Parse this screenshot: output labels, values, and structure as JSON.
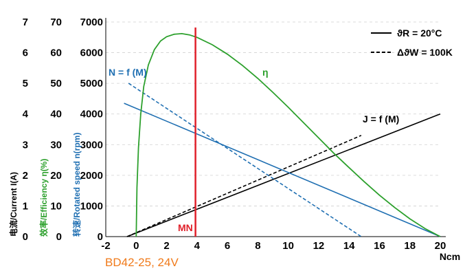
{
  "model_label": "BD42-25, 24V",
  "colors": {
    "current": "#000000",
    "efficiency": "#2ca02c",
    "speed": "#1f6fb2",
    "rated_marker": "#e0202a",
    "model_label": "#f07a1a"
  },
  "chart_data": {
    "type": "line",
    "xlabel": "Ncm",
    "xlim": [
      -2,
      20
    ],
    "x_ticks": [
      "-2",
      "0",
      "2",
      "4",
      "6",
      "8",
      "10",
      "12",
      "14",
      "16",
      "18",
      "20"
    ],
    "x_tick_values": [
      -2,
      0,
      2,
      4,
      6,
      8,
      10,
      12,
      14,
      16,
      18,
      20
    ],
    "axes": {
      "current": {
        "label": "电流/Current I(A)",
        "lim": [
          0,
          7
        ],
        "ticks": [
          "0",
          "1",
          "2",
          "3",
          "4",
          "5",
          "6",
          "7"
        ],
        "tick_values": [
          0,
          1,
          2,
          3,
          4,
          5,
          6,
          7
        ]
      },
      "efficiency": {
        "label": "效率/Efficiency η(%)",
        "lim": [
          0,
          70
        ],
        "ticks": [
          "0",
          "10",
          "20",
          "30",
          "40",
          "50",
          "60",
          "70"
        ],
        "tick_values": [
          0,
          10,
          20,
          30,
          40,
          50,
          60,
          70
        ]
      },
      "speed": {
        "label": "转速/Rotated speed n(rpm)",
        "lim": [
          0,
          7000
        ],
        "ticks": [
          "0",
          "1000",
          "2000",
          "3000",
          "4000",
          "5000",
          "6000",
          "7000"
        ],
        "tick_values": [
          0,
          1000,
          2000,
          3000,
          4000,
          5000,
          6000,
          7000
        ]
      }
    },
    "legend": {
      "placement": "top-right",
      "solid_label": "ϑR = 20°C",
      "dashed_label": "ΔϑW = 100K"
    },
    "annotations": {
      "speed_label": "N = f (M)",
      "current_label": "J = f (M)",
      "efficiency_label": "η",
      "rated_marker": "MN",
      "rated_x": 3.9
    },
    "series": [
      {
        "name": "J = f (M)",
        "axis": "current",
        "style": "solid",
        "x": [
          -0.6,
          20
        ],
        "y": [
          0,
          4
        ]
      },
      {
        "name": "J = f (M)",
        "axis": "current",
        "style": "dashed",
        "x": [
          -0.6,
          14.8
        ],
        "y": [
          0,
          3.3
        ]
      },
      {
        "name": "N = f (M)",
        "axis": "speed",
        "style": "solid",
        "x": [
          -0.8,
          20
        ],
        "y": [
          4350,
          0
        ]
      },
      {
        "name": "N = f (M)",
        "axis": "speed",
        "style": "dashed",
        "x": [
          -0.5,
          14.8
        ],
        "y": [
          5000,
          0
        ]
      },
      {
        "name": "η",
        "axis": "efficiency",
        "style": "solid",
        "x": [
          0.0,
          0.05,
          0.15,
          0.3,
          0.5,
          0.8,
          1.2,
          1.6,
          2.0,
          2.5,
          3.0,
          3.5,
          4.0,
          5.0,
          6.0,
          7.0,
          8.0,
          9.0,
          10.0,
          11.0,
          12.0,
          13.0,
          14.0,
          15.0,
          16.0,
          17.0,
          18.0,
          19.0,
          20.0
        ],
        "y": [
          0,
          16,
          29,
          40,
          49,
          56,
          61,
          63.8,
          65.2,
          66.0,
          66.2,
          65.8,
          65.0,
          62.6,
          59.5,
          55.8,
          51.6,
          47.0,
          42.2,
          37.2,
          32.2,
          27.2,
          22.5,
          17.9,
          13.5,
          9.5,
          5.8,
          2.6,
          0
        ]
      }
    ]
  }
}
